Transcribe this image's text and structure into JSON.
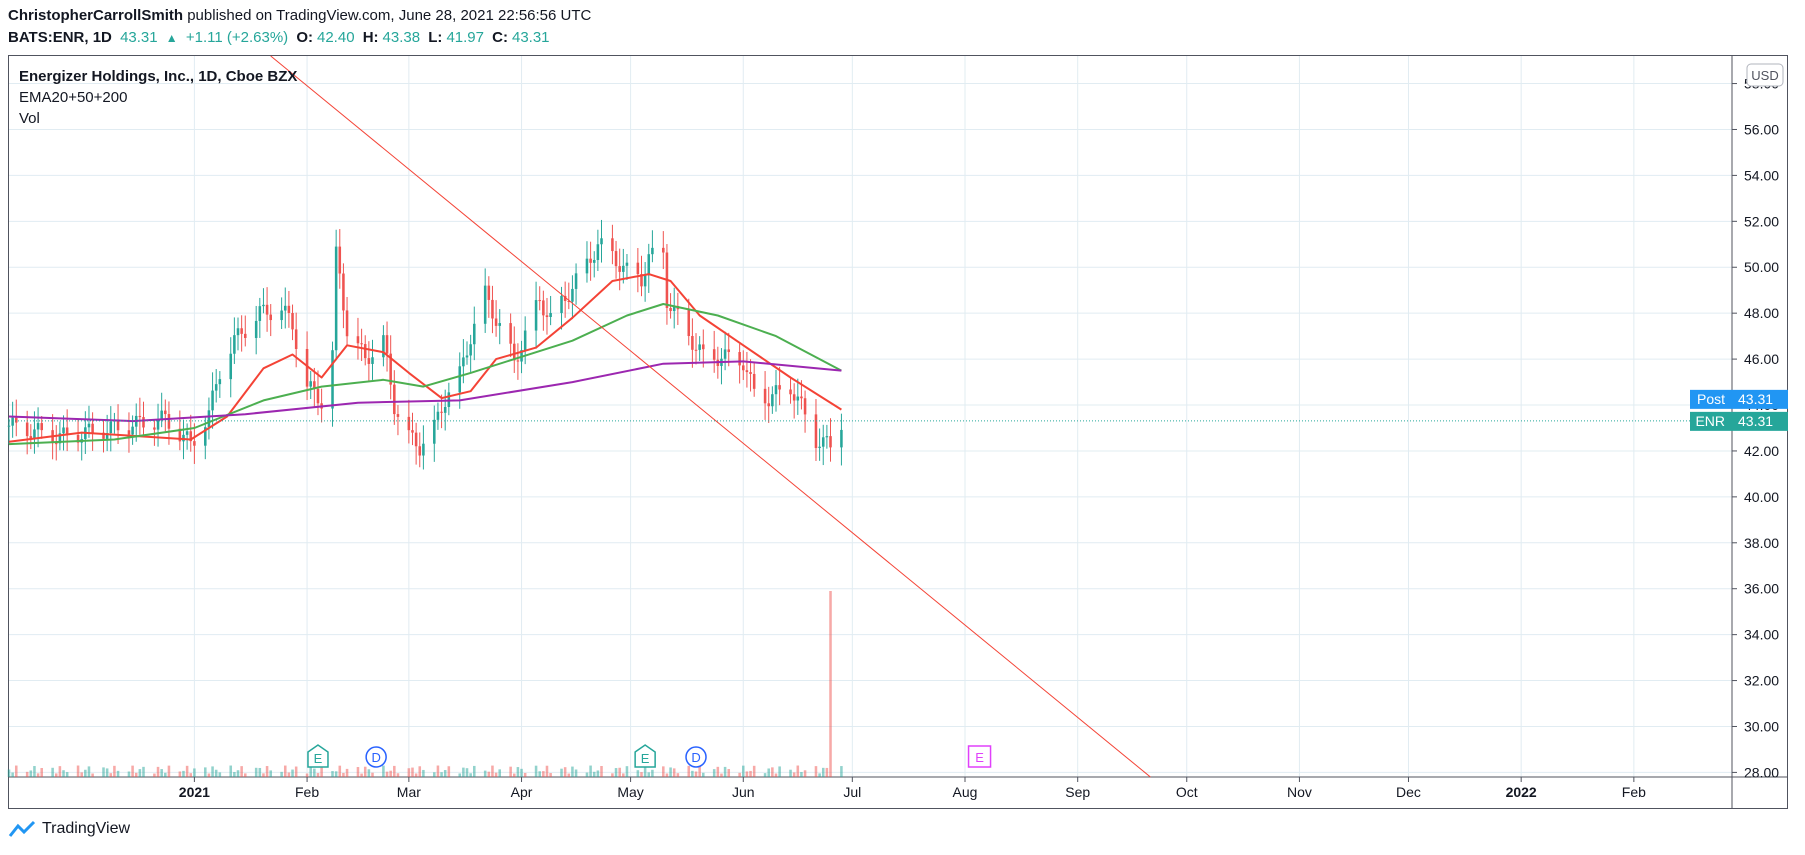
{
  "header": {
    "author": "ChristopherCarrollSmith",
    "published": "published on TradingView.com, June 28, 2021 22:56:56 UTC",
    "symbol": "BATS:ENR, 1D",
    "last": "43.31",
    "change": "+1.11 (+2.63%)",
    "o_label": "O:",
    "o_value": "42.40",
    "h_label": "H:",
    "h_value": "43.38",
    "l_label": "L:",
    "l_value": "41.97",
    "c_label": "C:",
    "c_value": "43.31"
  },
  "legend": {
    "title": "Energizer Holdings, Inc., 1D, Cboe BZX",
    "indicator": "EMA20+50+200",
    "volume": "Vol"
  },
  "footer": {
    "brand": "TradingView"
  },
  "colors": {
    "up": "#26a69a",
    "down": "#ef5350",
    "ema20": "#f44336",
    "ema50": "#4caf50",
    "ema200": "#9c27b0",
    "trendline": "#f44336",
    "post_badge": "#2196f3",
    "enr_badge": "#26a69a"
  },
  "chart_data": {
    "type": "candlestick",
    "currency": "USD",
    "y_ticks": [
      "58.00",
      "56.00",
      "54.00",
      "52.00",
      "50.00",
      "48.00",
      "46.00",
      "44.00",
      "42.00",
      "40.00",
      "38.00",
      "36.00",
      "34.00",
      "32.00",
      "30.00",
      "28.00"
    ],
    "y_range": [
      27.8,
      59.2
    ],
    "x_range": [
      "2020-11-11",
      "2022-02-28"
    ],
    "x_ticks": [
      {
        "date": "2021-01-01",
        "label": "2021",
        "bold": true
      },
      {
        "date": "2021-02-01",
        "label": "Feb"
      },
      {
        "date": "2021-03-01",
        "label": "Mar"
      },
      {
        "date": "2021-04-01",
        "label": "Apr"
      },
      {
        "date": "2021-05-01",
        "label": "May"
      },
      {
        "date": "2021-06-01",
        "label": "Jun"
      },
      {
        "date": "2021-07-01",
        "label": "Jul"
      },
      {
        "date": "2021-08-01",
        "label": "Aug"
      },
      {
        "date": "2021-09-01",
        "label": "Sep"
      },
      {
        "date": "2021-10-01",
        "label": "Oct"
      },
      {
        "date": "2021-11-01",
        "label": "Nov"
      },
      {
        "date": "2021-12-01",
        "label": "Dec"
      },
      {
        "date": "2022-01-01",
        "label": "2022",
        "bold": true
      },
      {
        "date": "2022-02-01",
        "label": "Feb"
      }
    ],
    "close_path": [
      [
        "2020-11-11",
        43.1
      ],
      [
        "2020-11-25",
        42.6
      ],
      [
        "2020-12-10",
        43.0
      ],
      [
        "2020-12-24",
        43.4
      ],
      [
        "2020-12-31",
        42.3
      ],
      [
        "2021-01-05",
        43.6
      ],
      [
        "2021-01-08",
        45.5
      ],
      [
        "2021-01-12",
        46.8
      ],
      [
        "2021-01-19",
        48.0
      ],
      [
        "2021-01-25",
        48.2
      ],
      [
        "2021-01-28",
        47.5
      ],
      [
        "2021-02-01",
        44.8
      ],
      [
        "2021-02-05",
        44.2
      ],
      [
        "2021-02-08",
        46.3
      ],
      [
        "2021-02-09",
        50.5
      ],
      [
        "2021-02-10",
        49.6
      ],
      [
        "2021-02-12",
        47.3
      ],
      [
        "2021-02-17",
        46.0
      ],
      [
        "2021-02-22",
        46.8
      ],
      [
        "2021-02-25",
        44.0
      ],
      [
        "2021-03-01",
        42.6
      ],
      [
        "2021-03-04",
        42.2
      ],
      [
        "2021-03-08",
        43.0
      ],
      [
        "2021-03-11",
        44.3
      ],
      [
        "2021-03-15",
        45.3
      ],
      [
        "2021-03-18",
        47.0
      ],
      [
        "2021-03-22",
        48.8
      ],
      [
        "2021-03-26",
        47.4
      ],
      [
        "2021-03-30",
        45.9
      ],
      [
        "2021-04-02",
        47.0
      ],
      [
        "2021-04-06",
        48.6
      ],
      [
        "2021-04-09",
        47.7
      ],
      [
        "2021-04-14",
        48.9
      ],
      [
        "2021-04-19",
        50.1
      ],
      [
        "2021-04-22",
        51.0
      ],
      [
        "2021-04-26",
        50.5
      ],
      [
        "2021-04-30",
        49.8
      ],
      [
        "2021-05-04",
        49.5
      ],
      [
        "2021-05-06",
        50.4
      ],
      [
        "2021-05-10",
        50.6
      ],
      [
        "2021-05-11",
        48.6
      ],
      [
        "2021-05-14",
        47.8
      ],
      [
        "2021-05-18",
        46.8
      ],
      [
        "2021-05-21",
        46.1
      ],
      [
        "2021-05-26",
        46.1
      ],
      [
        "2021-06-01",
        45.9
      ],
      [
        "2021-06-04",
        44.5
      ],
      [
        "2021-06-08",
        44.3
      ],
      [
        "2021-06-14",
        44.8
      ],
      [
        "2021-06-17",
        43.9
      ],
      [
        "2021-06-21",
        42.5
      ],
      [
        "2021-06-25",
        42.2
      ],
      [
        "2021-06-28",
        43.31
      ]
    ],
    "series": [
      {
        "name": "EMA20",
        "values": [
          [
            "2020-11-11",
            42.4
          ],
          [
            "2020-12-01",
            42.8
          ],
          [
            "2020-12-31",
            42.5
          ],
          [
            "2021-01-10",
            43.5
          ],
          [
            "2021-01-20",
            45.6
          ],
          [
            "2021-01-28",
            46.2
          ],
          [
            "2021-02-05",
            45.2
          ],
          [
            "2021-02-12",
            46.6
          ],
          [
            "2021-02-22",
            46.3
          ],
          [
            "2021-03-01",
            45.4
          ],
          [
            "2021-03-10",
            44.3
          ],
          [
            "2021-03-18",
            44.6
          ],
          [
            "2021-03-25",
            46.0
          ],
          [
            "2021-04-05",
            46.5
          ],
          [
            "2021-04-15",
            47.8
          ],
          [
            "2021-04-26",
            49.4
          ],
          [
            "2021-05-06",
            49.7
          ],
          [
            "2021-05-12",
            49.4
          ],
          [
            "2021-05-20",
            47.9
          ],
          [
            "2021-06-01",
            46.6
          ],
          [
            "2021-06-14",
            45.2
          ],
          [
            "2021-06-28",
            43.8
          ]
        ]
      },
      {
        "name": "EMA50",
        "values": [
          [
            "2020-11-11",
            42.3
          ],
          [
            "2020-12-10",
            42.5
          ],
          [
            "2021-01-01",
            43.0
          ],
          [
            "2021-01-20",
            44.2
          ],
          [
            "2021-02-05",
            44.8
          ],
          [
            "2021-02-22",
            45.1
          ],
          [
            "2021-03-05",
            44.8
          ],
          [
            "2021-03-18",
            45.4
          ],
          [
            "2021-04-01",
            46.1
          ],
          [
            "2021-04-15",
            46.8
          ],
          [
            "2021-04-30",
            47.9
          ],
          [
            "2021-05-10",
            48.4
          ],
          [
            "2021-05-25",
            47.9
          ],
          [
            "2021-06-10",
            47.0
          ],
          [
            "2021-06-28",
            45.5
          ]
        ]
      },
      {
        "name": "EMA200",
        "values": [
          [
            "2020-11-11",
            43.5
          ],
          [
            "2020-12-15",
            43.3
          ],
          [
            "2021-01-15",
            43.6
          ],
          [
            "2021-02-15",
            44.1
          ],
          [
            "2021-03-15",
            44.2
          ],
          [
            "2021-04-15",
            45.0
          ],
          [
            "2021-05-10",
            45.8
          ],
          [
            "2021-06-01",
            45.9
          ],
          [
            "2021-06-28",
            45.5
          ]
        ]
      }
    ],
    "trendline": [
      [
        "2021-01-22",
        59.2
      ],
      [
        "2021-09-21",
        27.8
      ]
    ],
    "last_price_badges": [
      {
        "name": "Post",
        "value": "43.31"
      },
      {
        "name": "ENR",
        "value": "43.31"
      }
    ],
    "volume": {
      "spike_date": "2021-06-25",
      "spike_top_price": 35.9,
      "base_top_price": 28.3
    },
    "events": [
      {
        "date": "2021-02-04",
        "label": "E",
        "kind": "earnings"
      },
      {
        "date": "2021-02-20",
        "label": "D",
        "kind": "dividend"
      },
      {
        "date": "2021-05-05",
        "label": "E",
        "kind": "earnings"
      },
      {
        "date": "2021-05-19",
        "label": "D",
        "kind": "dividend"
      },
      {
        "date": "2021-08-05",
        "label": "E",
        "kind": "earnings-future"
      }
    ]
  }
}
